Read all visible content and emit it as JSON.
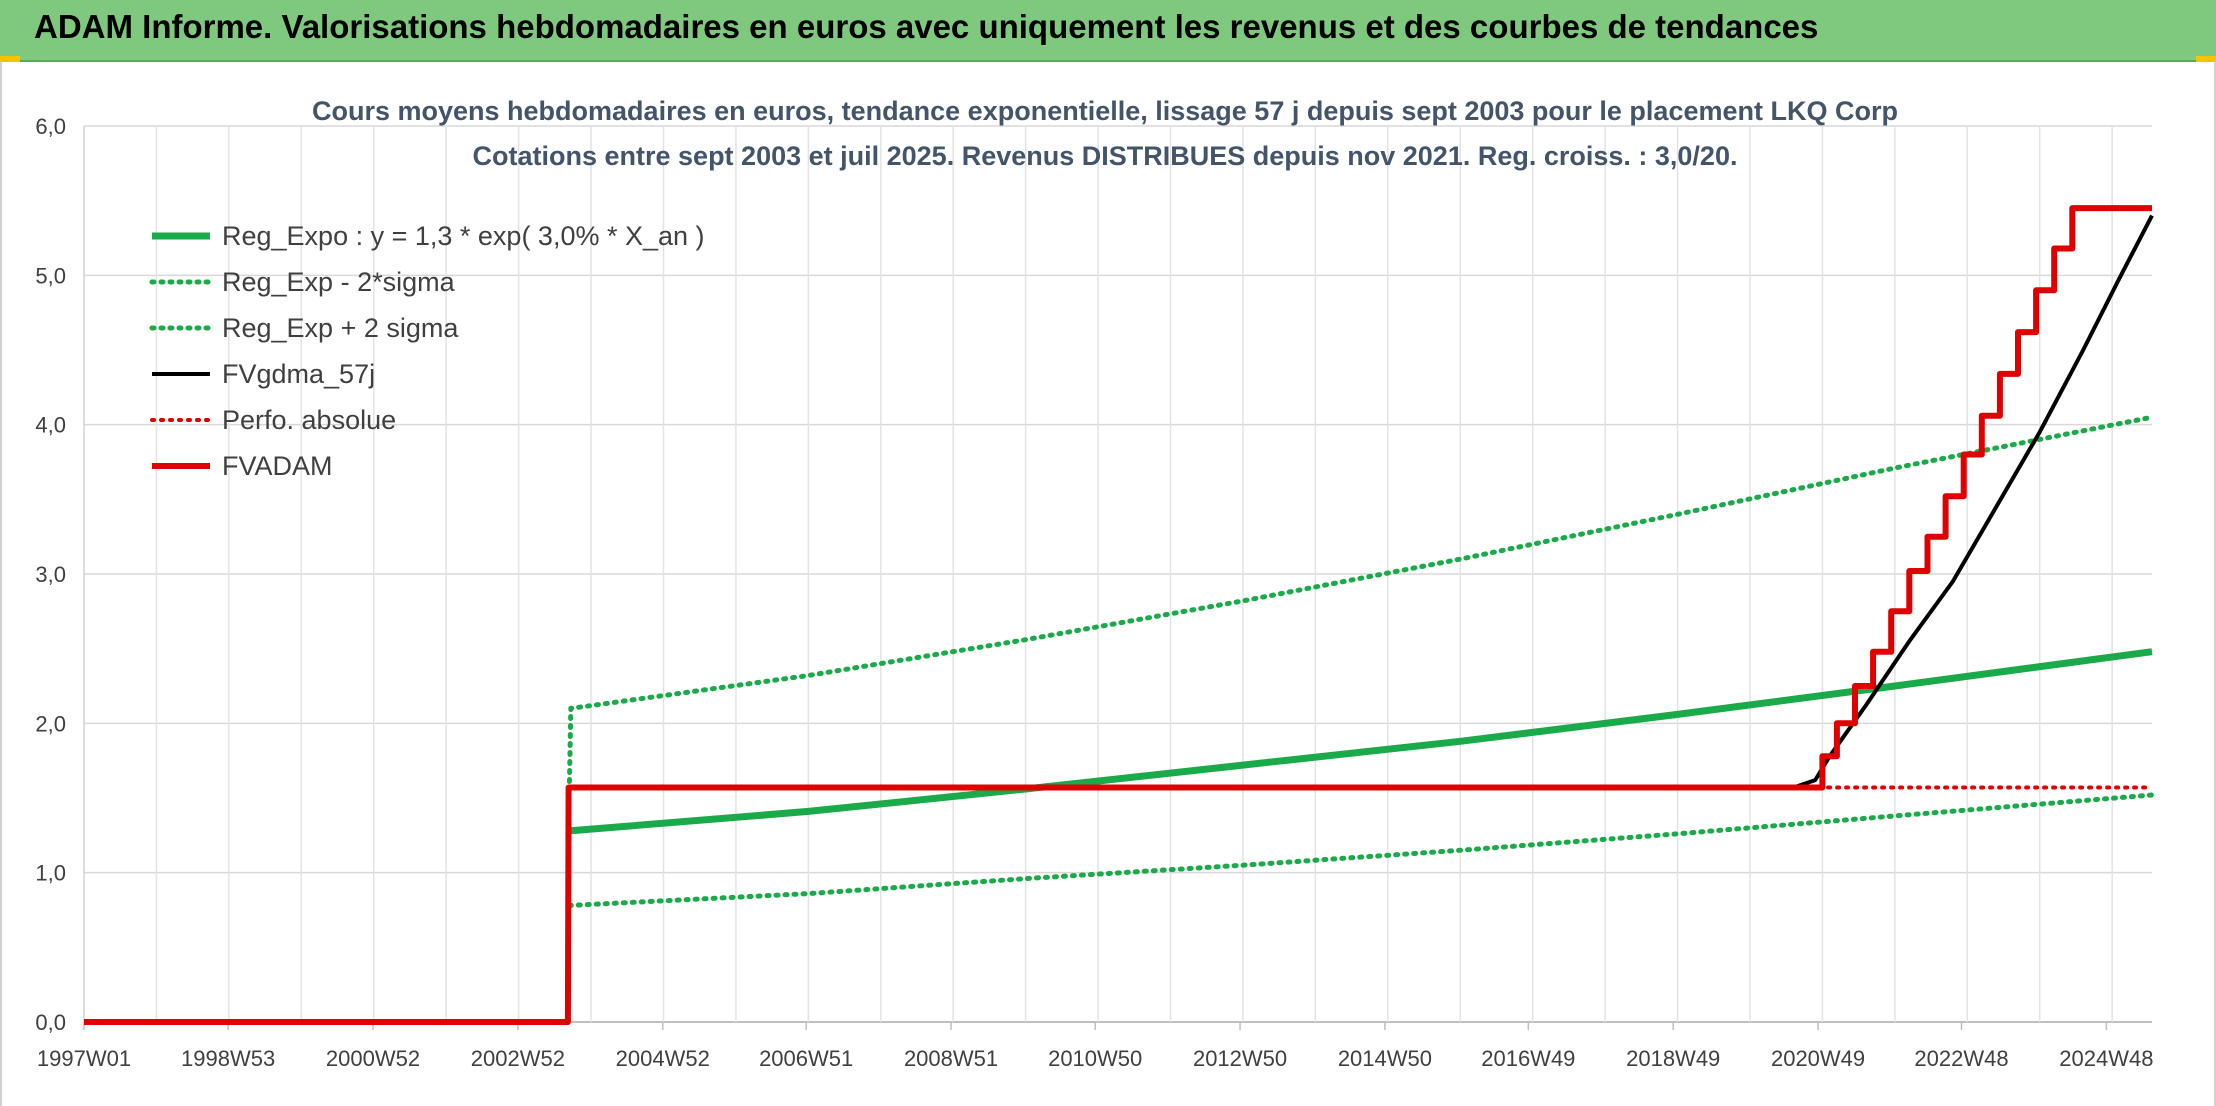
{
  "banner": {
    "title": "ADAM Informe. Valorisations hebdomadaires en euros avec uniquement les revenus et des courbes de tendances",
    "background": "#7fc97f"
  },
  "chart_data": {
    "type": "line",
    "title": "Cours moyens hebdomadaires en euros, tendance exponentielle, lissage 57 j depuis sept 2003 pour le placement LKQ Corp",
    "subtitle": "Cotations entre sept 2003 et juil 2025. Revenus DISTRIBUES depuis nov 2021. Reg. croiss. : 3,0/20.",
    "xlabel": "",
    "ylabel": "",
    "x_range": [
      1997.0,
      2025.55
    ],
    "ylim": [
      0,
      6
    ],
    "y_ticks": [
      "0,0",
      "1,0",
      "2,0",
      "3,0",
      "4,0",
      "5,0",
      "6,0"
    ],
    "x_ticks": [
      {
        "label": "1997W01",
        "x": 1997.0
      },
      {
        "label": "1998W53",
        "x": 1998.99
      },
      {
        "label": "2000W52",
        "x": 2000.99
      },
      {
        "label": "2002W52",
        "x": 2002.99
      },
      {
        "label": "2004W52",
        "x": 2004.99
      },
      {
        "label": "2006W51",
        "x": 2006.97
      },
      {
        "label": "2008W51",
        "x": 2008.97
      },
      {
        "label": "2010W50",
        "x": 2010.96
      },
      {
        "label": "2012W50",
        "x": 2012.96
      },
      {
        "label": "2014W50",
        "x": 2014.96
      },
      {
        "label": "2016W49",
        "x": 2016.94
      },
      {
        "label": "2018W49",
        "x": 2018.94
      },
      {
        "label": "2020W49",
        "x": 2020.94
      },
      {
        "label": "2022W48",
        "x": 2022.92
      },
      {
        "label": "2024W48",
        "x": 2024.92
      }
    ],
    "grid": true,
    "legend_position": "top-left",
    "series": [
      {
        "name": "Reg_Expo : y = 1,3 * exp( 3,0% *  X_an )",
        "style": "solid",
        "color": "#1aaa4a",
        "width": 7,
        "points": [
          [
            2003.7,
            1.28
          ],
          [
            2007.0,
            1.41
          ],
          [
            2010.0,
            1.56
          ],
          [
            2013.0,
            1.72
          ],
          [
            2016.0,
            1.88
          ],
          [
            2019.0,
            2.06
          ],
          [
            2022.0,
            2.25
          ],
          [
            2025.55,
            2.48
          ]
        ]
      },
      {
        "name": "Reg_Exp - 2*sigma",
        "style": "dotted",
        "color": "#1aaa4a",
        "width": 5,
        "points": [
          [
            2003.7,
            0.78
          ],
          [
            2007.0,
            0.86
          ],
          [
            2010.0,
            0.96
          ],
          [
            2013.0,
            1.05
          ],
          [
            2016.0,
            1.15
          ],
          [
            2019.0,
            1.26
          ],
          [
            2022.0,
            1.38
          ],
          [
            2025.55,
            1.52
          ]
        ]
      },
      {
        "name": "Reg_Exp + 2 sigma",
        "style": "dotted",
        "color": "#1aaa4a",
        "width": 5,
        "points": [
          [
            2003.7,
            1.55
          ],
          [
            2003.72,
            2.1
          ],
          [
            2007.0,
            2.32
          ],
          [
            2010.0,
            2.56
          ],
          [
            2013.0,
            2.82
          ],
          [
            2016.0,
            3.1
          ],
          [
            2019.0,
            3.4
          ],
          [
            2022.0,
            3.71
          ],
          [
            2025.55,
            4.05
          ]
        ]
      },
      {
        "name": "FVgdma_57j",
        "style": "solid",
        "color": "#000000",
        "width": 4,
        "points": [
          [
            2003.68,
            0.0
          ],
          [
            2003.69,
            1.57
          ],
          [
            2020.6,
            1.57
          ],
          [
            2020.9,
            1.62
          ],
          [
            2021.1,
            1.78
          ],
          [
            2021.6,
            2.12
          ],
          [
            2022.2,
            2.55
          ],
          [
            2022.8,
            2.95
          ],
          [
            2023.4,
            3.45
          ],
          [
            2024.0,
            3.95
          ],
          [
            2024.6,
            4.5
          ],
          [
            2025.1,
            4.98
          ],
          [
            2025.55,
            5.4
          ]
        ]
      },
      {
        "name": "Perfo. absolue",
        "style": "dotted",
        "color": "#e00000",
        "width": 4,
        "points": [
          [
            2003.68,
            0.0
          ],
          [
            2003.69,
            1.57
          ],
          [
            2020.9,
            1.57
          ],
          [
            2025.55,
            1.57
          ]
        ]
      },
      {
        "name": "FVADAM",
        "style": "solid",
        "color": "#e00000",
        "width": 6,
        "points": [
          [
            1997.0,
            0.0
          ],
          [
            2003.68,
            0.0
          ],
          [
            2003.69,
            1.57
          ],
          [
            2021.0,
            1.57
          ],
          [
            2021.0,
            1.78
          ],
          [
            2021.2,
            1.78
          ],
          [
            2021.2,
            2.0
          ],
          [
            2021.45,
            2.0
          ],
          [
            2021.45,
            2.25
          ],
          [
            2021.7,
            2.25
          ],
          [
            2021.7,
            2.48
          ],
          [
            2021.95,
            2.48
          ],
          [
            2021.95,
            2.75
          ],
          [
            2022.2,
            2.75
          ],
          [
            2022.2,
            3.02
          ],
          [
            2022.45,
            3.02
          ],
          [
            2022.45,
            3.25
          ],
          [
            2022.7,
            3.25
          ],
          [
            2022.7,
            3.52
          ],
          [
            2022.95,
            3.52
          ],
          [
            2022.95,
            3.8
          ],
          [
            2023.2,
            3.8
          ],
          [
            2023.2,
            4.06
          ],
          [
            2023.45,
            4.06
          ],
          [
            2023.45,
            4.34
          ],
          [
            2023.7,
            4.34
          ],
          [
            2023.7,
            4.62
          ],
          [
            2023.95,
            4.62
          ],
          [
            2023.95,
            4.9
          ],
          [
            2024.2,
            4.9
          ],
          [
            2024.2,
            5.18
          ],
          [
            2024.45,
            5.18
          ],
          [
            2024.45,
            5.45
          ],
          [
            2025.55,
            5.45
          ]
        ]
      }
    ]
  }
}
